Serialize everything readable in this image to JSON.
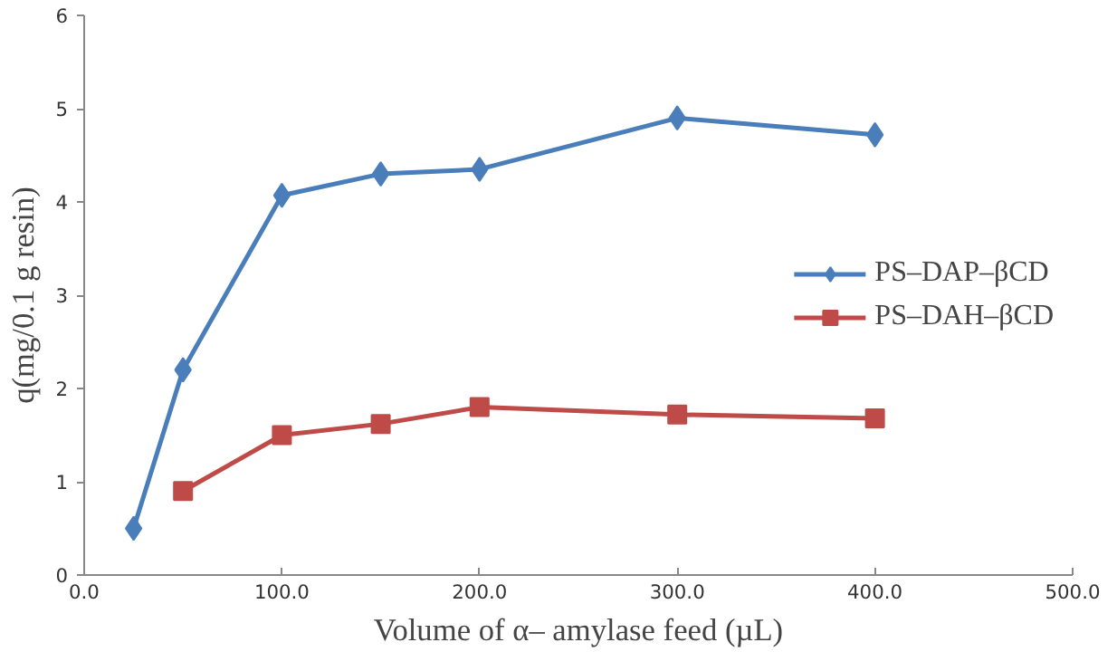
{
  "chart_data": {
    "type": "line",
    "xlabel": "Volume of α– amylase feed (µL)",
    "ylabel": "q(mg/0.1 g resin)",
    "xlim": [
      0,
      500
    ],
    "xticks": [
      {
        "value": 0,
        "label": "0.0"
      },
      {
        "value": 100,
        "label": "100.0"
      },
      {
        "value": 200,
        "label": "200.0"
      },
      {
        "value": 300,
        "label": "300.0"
      },
      {
        "value": 400,
        "label": "400.0"
      },
      {
        "value": 500,
        "label": "500.0"
      }
    ],
    "ylim": [
      0,
      6
    ],
    "yticks": [
      0,
      1,
      2,
      3,
      4,
      5,
      6
    ],
    "grid": false,
    "legend": "right",
    "series": [
      {
        "name": "PS–DAP–βCD",
        "color": "#4a7ebb",
        "marker": "diamond",
        "x": [
          25,
          50,
          100,
          150,
          200,
          300,
          400
        ],
        "values": [
          0.5,
          2.2,
          4.07,
          4.3,
          4.35,
          4.9,
          4.72
        ]
      },
      {
        "name": "PS–DAH–βCD",
        "color": "#be4b48",
        "marker": "square",
        "x": [
          50,
          100,
          150,
          200,
          300,
          400
        ],
        "values": [
          0.9,
          1.5,
          1.62,
          1.8,
          1.72,
          1.68
        ]
      }
    ]
  }
}
